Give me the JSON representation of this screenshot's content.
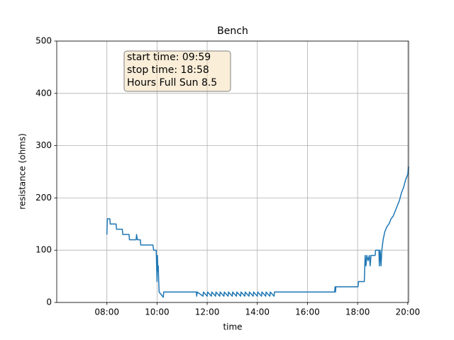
{
  "chart_data": {
    "type": "line",
    "title": "Bench",
    "xlabel": "time",
    "ylabel": "resistance (ohms)",
    "annotation": [
      "start time: 09:59",
      "stop time: 18:58",
      "Hours Full Sun 8.5"
    ],
    "color": "#1f77b4",
    "grid": true,
    "xlim": [
      "06:00",
      "20:02"
    ],
    "xticks": [
      "08:00",
      "10:00",
      "12:00",
      "14:00",
      "16:00",
      "18:00",
      "20:00"
    ],
    "ylim": [
      0,
      500
    ],
    "yticks": [
      0,
      100,
      200,
      300,
      400,
      500
    ],
    "x": [
      "08:00",
      "08:01",
      "08:07",
      "08:08",
      "08:22",
      "08:23",
      "08:37",
      "08:38",
      "08:53",
      "08:54",
      "09:10",
      "09:11",
      "09:13",
      "09:20",
      "09:21",
      "09:50",
      "09:52",
      "09:58",
      "10:00",
      "10:01",
      "10:02",
      "10:03",
      "10:04",
      "10:05",
      "10:15",
      "10:16",
      "11:34",
      "11:35",
      "11:36",
      "11:50",
      "11:51",
      "12:00",
      "12:01",
      "12:10",
      "12:11",
      "12:20",
      "12:21",
      "12:30",
      "12:31",
      "12:40",
      "12:41",
      "12:50",
      "12:51",
      "13:00",
      "13:01",
      "13:10",
      "13:11",
      "13:20",
      "13:21",
      "13:30",
      "13:31",
      "13:40",
      "13:41",
      "13:50",
      "13:51",
      "14:00",
      "14:01",
      "14:10",
      "14:11",
      "14:20",
      "14:21",
      "14:30",
      "14:31",
      "14:40",
      "14:41",
      "17:05",
      "17:06",
      "17:07",
      "17:08",
      "18:01",
      "18:02",
      "18:16",
      "18:18",
      "18:20",
      "18:22",
      "18:25",
      "18:28",
      "18:30",
      "18:32",
      "18:42",
      "18:43",
      "18:51",
      "18:52",
      "18:54",
      "18:56",
      "18:58",
      "19:01",
      "19:05",
      "19:10",
      "19:15",
      "19:20",
      "19:25",
      "19:30",
      "19:35",
      "19:40",
      "19:45",
      "19:50",
      "19:55",
      "20:00",
      "20:02"
    ],
    "values": [
      130,
      160,
      160,
      150,
      150,
      140,
      140,
      130,
      130,
      120,
      120,
      130,
      120,
      120,
      110,
      110,
      100,
      100,
      40,
      90,
      60,
      70,
      40,
      20,
      10,
      20,
      20,
      12,
      20,
      12,
      20,
      12,
      20,
      12,
      20,
      12,
      20,
      12,
      20,
      12,
      20,
      12,
      20,
      12,
      20,
      12,
      20,
      12,
      20,
      12,
      20,
      12,
      20,
      12,
      20,
      12,
      20,
      12,
      20,
      12,
      20,
      12,
      20,
      12,
      20,
      20,
      30,
      20,
      30,
      30,
      40,
      40,
      90,
      70,
      90,
      80,
      90,
      70,
      90,
      90,
      100,
      100,
      70,
      100,
      70,
      100,
      120,
      135,
      145,
      150,
      160,
      165,
      175,
      185,
      195,
      210,
      220,
      235,
      245,
      260
    ]
  }
}
